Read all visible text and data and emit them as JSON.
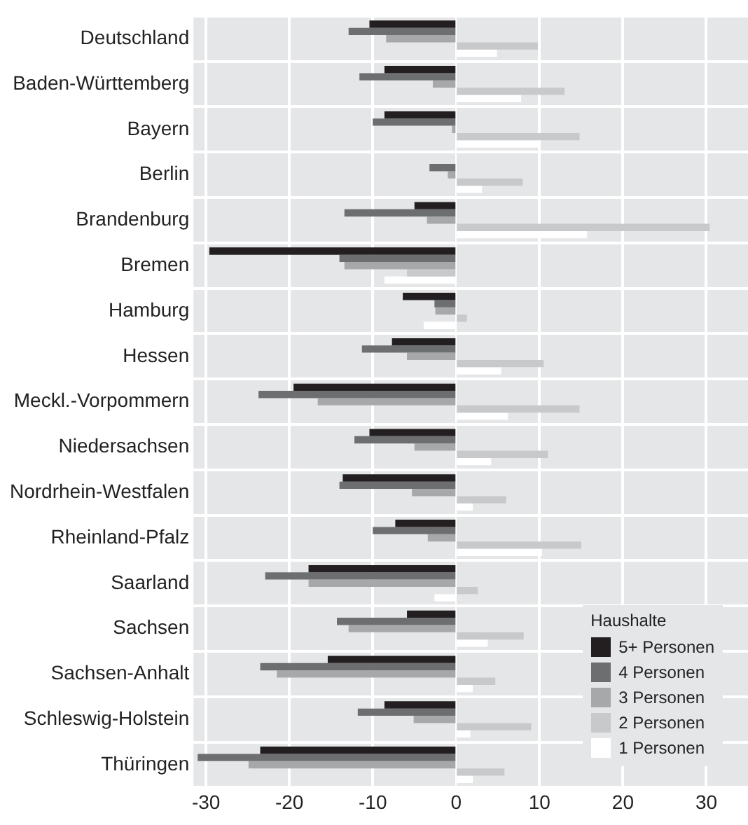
{
  "chart_data": {
    "type": "bar",
    "orientation": "horizontal",
    "categories": [
      "Deutschland",
      "Baden-Württemberg",
      "Bayern",
      "Berlin",
      "Brandenburg",
      "Bremen",
      "Hamburg",
      "Hessen",
      "Meckl.-Vorpommern",
      "Niedersachsen",
      "Nordrhein-Westfalen",
      "Rheinland-Pfalz",
      "Saarland",
      "Sachsen",
      "Sachsen-Anhalt",
      "Schleswig-Holstein",
      "Thüringen"
    ],
    "series": [
      {
        "name": "5+ Personen",
        "color": "#231f20",
        "values": [
          -10.4,
          -8.6,
          -8.6,
          0,
          -5.0,
          -29.6,
          -6.4,
          -7.7,
          -19.5,
          -10.4,
          -13.6,
          -7.3,
          -17.7,
          -5.9,
          -15.4,
          -8.6,
          -23.5
        ]
      },
      {
        "name": "4 Personen",
        "color": "#6d6e70",
        "values": [
          -12.9,
          -11.6,
          -10.0,
          -3.2,
          -13.4,
          -14.0,
          -2.6,
          -11.3,
          -23.7,
          -12.2,
          -14.0,
          -10.0,
          -22.9,
          -14.3,
          -23.5,
          -11.8,
          -31
        ]
      },
      {
        "name": "3 Personen",
        "color": "#a7a8aa",
        "values": [
          -8.4,
          -2.8,
          -0.5,
          -1.0,
          -3.5,
          -13.4,
          -2.5,
          -5.9,
          -16.6,
          -5.0,
          -5.3,
          -3.4,
          -17.7,
          -12.9,
          -21.5,
          -5.1,
          -24.9
        ]
      },
      {
        "name": "2 Personen",
        "color": "#c8c9cb",
        "values": [
          9.8,
          13.0,
          14.8,
          8.0,
          30.4,
          -5.9,
          1.3,
          10.5,
          14.8,
          11.0,
          6.0,
          15.0,
          2.6,
          8.1,
          4.7,
          9.0,
          5.8
        ]
      },
      {
        "name": "1 Personen",
        "color": "#ffffff",
        "values": [
          4.9,
          7.8,
          9.8,
          3.1,
          15.7,
          -8.6,
          -3.9,
          5.4,
          6.2,
          4.2,
          2.0,
          10.3,
          -2.6,
          3.8,
          2.0,
          1.7,
          2.0
        ]
      }
    ],
    "xlim": [
      -31.5,
      35
    ],
    "xticks": [
      -30,
      -20,
      -10,
      0,
      10,
      20,
      30
    ],
    "grid": true,
    "legend": "bottom right",
    "legend_title": "Haushalte"
  }
}
